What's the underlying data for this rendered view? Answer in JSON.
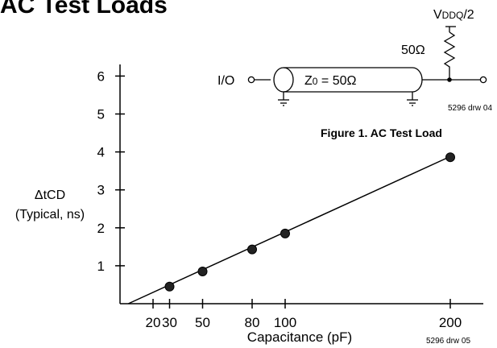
{
  "page_title": "AC Test Loads",
  "figure1": {
    "caption": "Figure 1. AC Test Load",
    "supply_label": "V",
    "supply_label_sub": "DDQ",
    "supply_label_suffix": "/2",
    "resistor_label": "50Ω",
    "io_label": "I/O",
    "line_label": "Z",
    "line_label_sub": "0",
    "line_label_suffix": " = 50Ω",
    "drawing_number": "5296 drw 04"
  },
  "chart_data": {
    "type": "line",
    "title": "",
    "xlabel": "Capacitance (pF)",
    "ylabel_main": "ΔtCD",
    "ylabel_sub": "(Typical, ns)",
    "x_ticks": [
      20,
      30,
      50,
      80,
      100,
      200
    ],
    "y_ticks": [
      1,
      2,
      3,
      4,
      5,
      6
    ],
    "xlim": [
      0,
      210
    ],
    "ylim": [
      0,
      6.5
    ],
    "line_x": [
      5,
      200
    ],
    "line_y": [
      0,
      3.88
    ],
    "points": [
      {
        "x": 30,
        "y": 0.45
      },
      {
        "x": 50,
        "y": 0.85
      },
      {
        "x": 80,
        "y": 1.43
      },
      {
        "x": 100,
        "y": 1.85
      },
      {
        "x": 200,
        "y": 3.86
      }
    ],
    "drawing_number": "5296 drw 05"
  }
}
